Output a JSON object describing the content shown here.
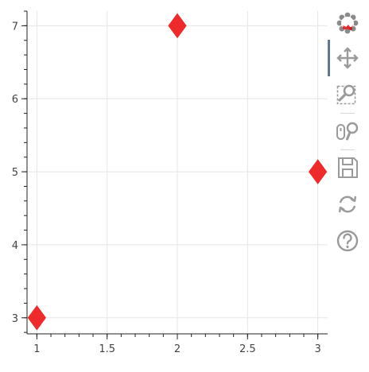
{
  "chart_data": {
    "type": "scatter",
    "title": "",
    "xlabel": "",
    "ylabel": "",
    "marker": "diamond",
    "marker_color": "#ee2a2a",
    "x": [
      1,
      2,
      3
    ],
    "y": [
      3,
      7,
      5
    ],
    "xlim": [
      0.93,
      3.07
    ],
    "ylim": [
      2.78,
      7.2
    ],
    "x_ticks": [
      1,
      1.5,
      2,
      2.5,
      3
    ],
    "x_tick_labels": [
      "1",
      "1.5",
      "2",
      "2.5",
      "3"
    ],
    "y_ticks": [
      3,
      4,
      5,
      6,
      7
    ],
    "y_tick_labels": [
      "3",
      "4",
      "5",
      "6",
      "7"
    ],
    "grid": true,
    "grid_color": "#e5e5e5",
    "axis_color": "#222222"
  },
  "toolbar": {
    "tools": [
      {
        "name": "bokeh-logo-icon",
        "interactable": false
      },
      {
        "name": "pan-tool-icon",
        "interactable": true,
        "active": true
      },
      {
        "name": "box-zoom-tool-icon",
        "interactable": true
      },
      {
        "name": "wheel-zoom-tool-icon",
        "interactable": true
      },
      {
        "name": "save-tool-icon",
        "interactable": true
      },
      {
        "name": "reset-tool-icon",
        "interactable": true
      },
      {
        "name": "help-tool-icon",
        "interactable": true
      }
    ],
    "icon_color": "#9a9a9a",
    "active_color": "#5f7a90"
  }
}
